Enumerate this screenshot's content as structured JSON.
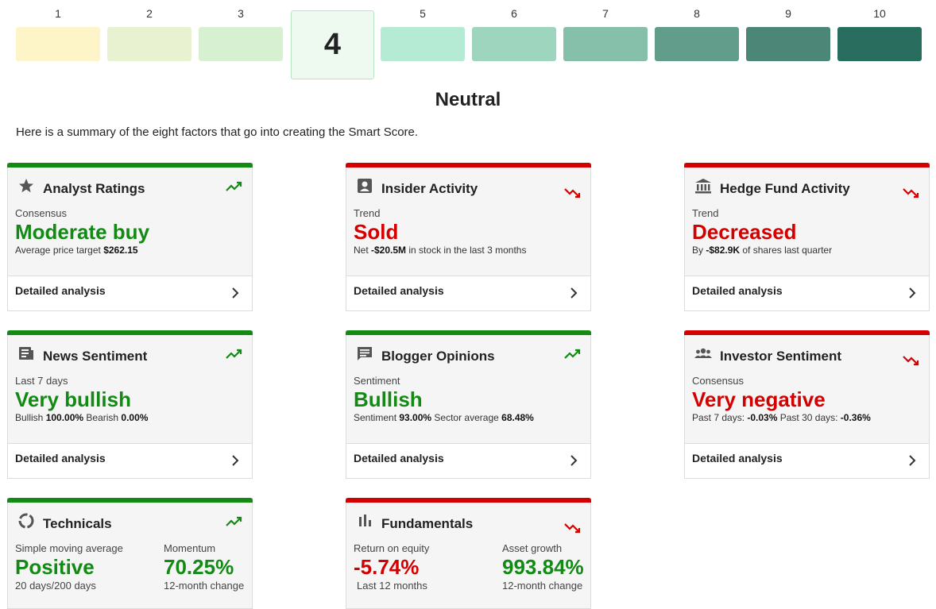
{
  "scale": {
    "labels": [
      "1",
      "2",
      "3",
      "4",
      "5",
      "6",
      "7",
      "8",
      "9",
      "10"
    ],
    "colors": [
      "#fdf4c8",
      "#e8f2d0",
      "#d8f0d2",
      "#eefaf0",
      "#b5ebd5",
      "#9dd5be",
      "#86c0aa",
      "#629c8a",
      "#4b8676",
      "#286d5e"
    ],
    "current": "4",
    "current_label": "Neutral"
  },
  "intro": "Here is a summary of the eight factors that go into creating the Smart Score.",
  "cards": [
    {
      "title": "Analyst Ratings",
      "sub": "Consensus",
      "value": "Moderate buy",
      "detail_pre": "Average price target ",
      "detail_b1": "$262.15",
      "detail_mid": "",
      "detail_b2": "",
      "detail_post": "",
      "footer": "Detailed analysis",
      "trend": "up",
      "icon": "star-icon"
    },
    {
      "title": "Insider Activity",
      "sub": "Trend",
      "value": "Sold",
      "detail_pre": "Net ",
      "detail_b1": "-$20.5M",
      "detail_mid": " in stock in the last 3 months",
      "detail_b2": "",
      "detail_post": "",
      "footer": "Detailed analysis",
      "trend": "down",
      "icon": "person-badge-icon"
    },
    {
      "title": "Hedge Fund Activity",
      "sub": "Trend",
      "value": "Decreased",
      "detail_pre": "By ",
      "detail_b1": "-$82.9K",
      "detail_mid": " of shares last quarter",
      "detail_b2": "",
      "detail_post": "",
      "footer": "Detailed analysis",
      "trend": "down",
      "icon": "bank-icon"
    },
    {
      "title": "News Sentiment",
      "sub": "Last 7 days",
      "value": "Very bullish",
      "detail_pre": "Bullish ",
      "detail_b1": "100.00%",
      "detail_mid": " Bearish ",
      "detail_b2": "0.00%",
      "detail_post": "",
      "footer": "Detailed analysis",
      "trend": "up",
      "icon": "newspaper-icon"
    },
    {
      "title": "Blogger Opinions",
      "sub": "Sentiment",
      "value": "Bullish",
      "detail_pre": "Sentiment ",
      "detail_b1": "93.00%",
      "detail_mid": " Sector average ",
      "detail_b2": "68.48%",
      "detail_post": "",
      "footer": "Detailed analysis",
      "trend": "up",
      "icon": "comment-icon"
    },
    {
      "title": "Investor Sentiment",
      "sub": "Consensus",
      "value": "Very negative",
      "detail_pre": "Past 7 days: ",
      "detail_b1": "-0.03%",
      "detail_mid": " Past 30 days: ",
      "detail_b2": "-0.36%",
      "detail_post": "",
      "footer": "Detailed analysis",
      "trend": "down",
      "icon": "people-icon"
    }
  ],
  "technicals": {
    "title": "Technicals",
    "trend": "up",
    "left_sub": "Simple moving average",
    "left_value": "Positive",
    "left_detail": "20 days/200 days",
    "right_sub": "Momentum",
    "right_value": "70.25%",
    "right_detail": "12-month change"
  },
  "fundamentals": {
    "title": "Fundamentals",
    "trend": "down",
    "left_sub": "Return on equity",
    "left_value": "-5.74%",
    "left_detail": "Last 12 months",
    "right_sub": "Asset growth",
    "right_value": "993.84%",
    "right_detail": "12-month change"
  },
  "colors": {
    "positive": "#128a14",
    "negative": "#d40000"
  }
}
